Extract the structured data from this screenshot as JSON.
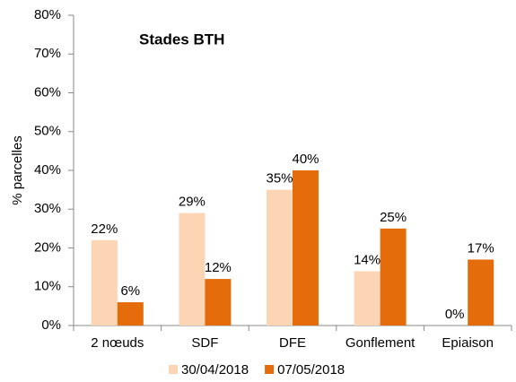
{
  "chart_data": {
    "type": "bar",
    "title": "Stades BTH",
    "y_label": "% parcelles",
    "categories": [
      "2 nœuds",
      "SDF",
      "DFE",
      "Gonflement",
      "Epiaison"
    ],
    "series": [
      {
        "name": "30/04/2018",
        "color": "#fcd5b5",
        "values": [
          22,
          29,
          35,
          14,
          0
        ],
        "value_labels": [
          "22%",
          "29%",
          "35%",
          "14%",
          "0%"
        ]
      },
      {
        "name": "07/05/2018",
        "color": "#e46c0a",
        "values": [
          6,
          12,
          40,
          25,
          17
        ],
        "value_labels": [
          "6%",
          "12%",
          "40%",
          "25%",
          "17%"
        ]
      }
    ],
    "ylim": [
      0,
      80
    ],
    "yticks": [
      {
        "value": 0,
        "label": "0%"
      },
      {
        "value": 10,
        "label": "10%"
      },
      {
        "value": 20,
        "label": "20%"
      },
      {
        "value": 30,
        "label": "30%"
      },
      {
        "value": 40,
        "label": "40%"
      },
      {
        "value": 50,
        "label": "50%"
      },
      {
        "value": 60,
        "label": "60%"
      },
      {
        "value": 70,
        "label": "70%"
      },
      {
        "value": 80,
        "label": "80%"
      }
    ],
    "grid": false,
    "legend": "bottom"
  }
}
